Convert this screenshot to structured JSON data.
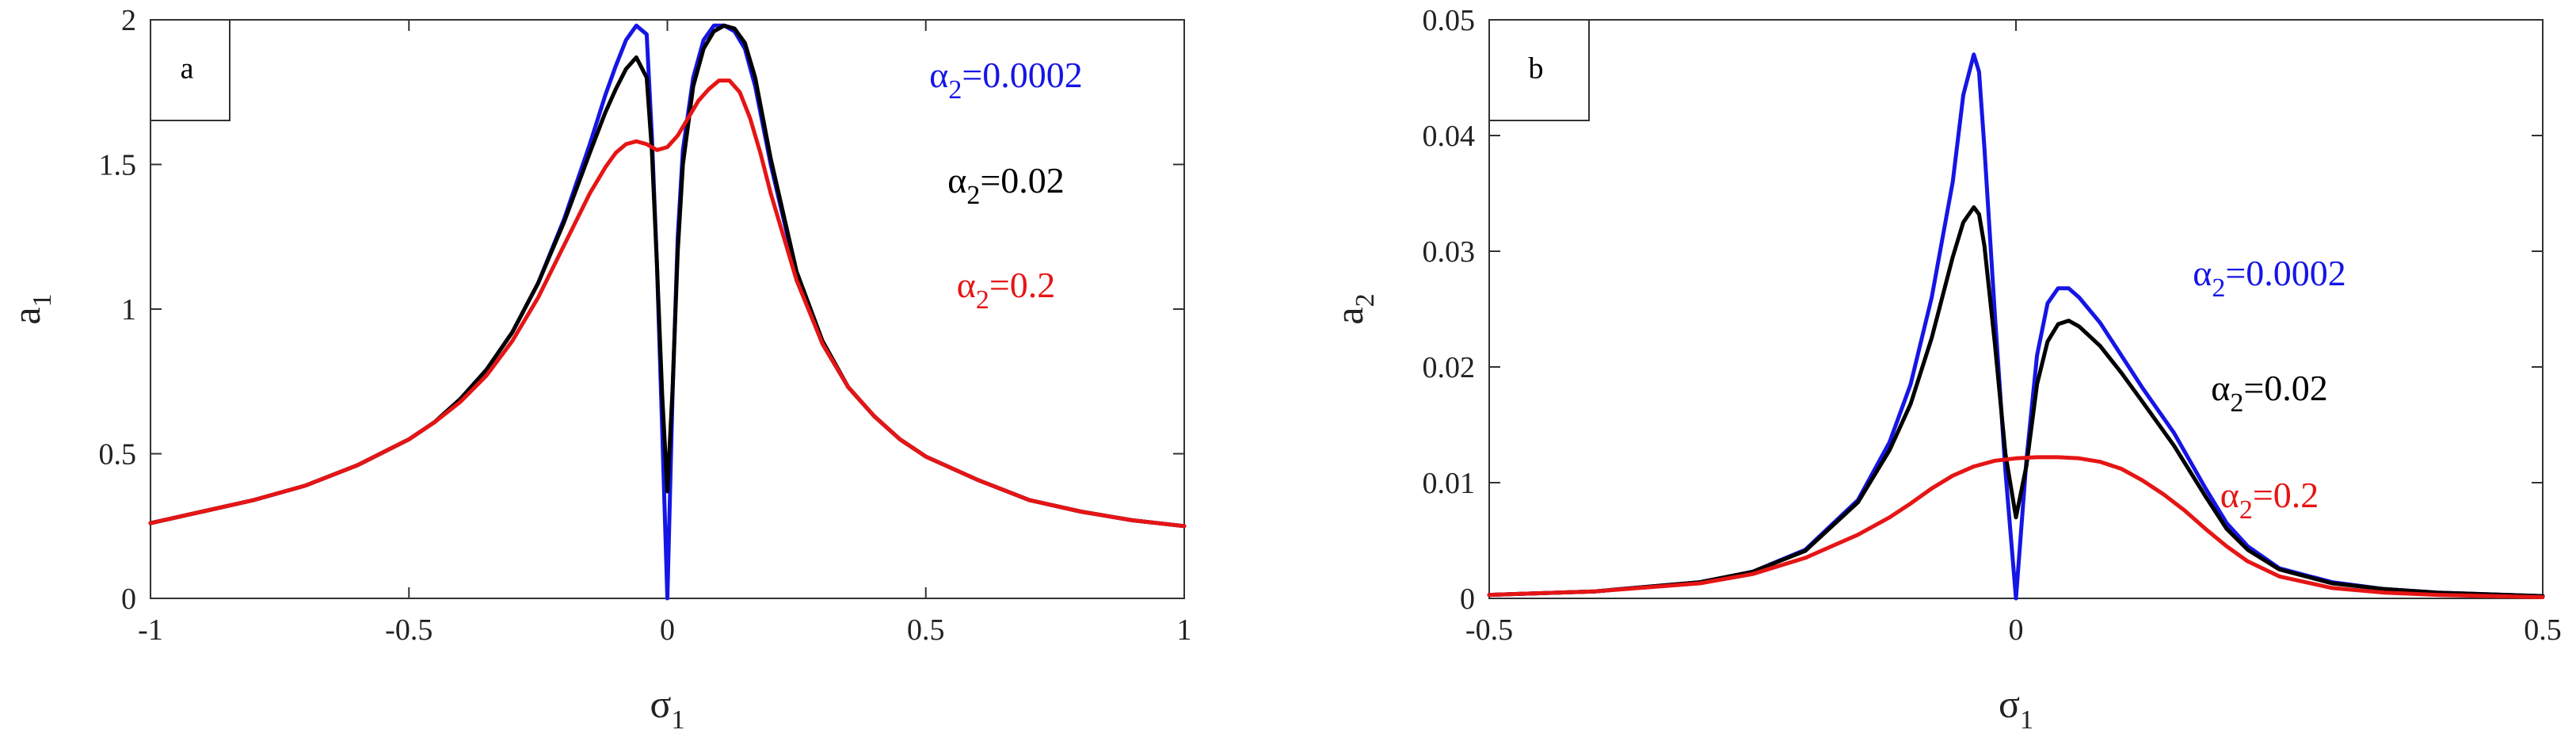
{
  "chart_data": [
    {
      "type": "line",
      "panel_label": "a",
      "xlabel": "σ1",
      "ylabel": "a1",
      "xlim": [
        -1,
        1
      ],
      "ylim": [
        0,
        2
      ],
      "xticks": [
        -1,
        -0.5,
        0,
        0.5,
        1
      ],
      "yticks": [
        0,
        0.5,
        1,
        1.5,
        2
      ],
      "grid": false,
      "legend_placement": "top-right",
      "series": [
        {
          "name": "α2=0.0002",
          "color": "#1515e6",
          "x": [
            -1,
            -0.9,
            -0.8,
            -0.7,
            -0.6,
            -0.5,
            -0.45,
            -0.4,
            -0.35,
            -0.3,
            -0.25,
            -0.2,
            -0.15,
            -0.12,
            -0.1,
            -0.08,
            -0.06,
            -0.04,
            -0.03,
            -0.02,
            -0.01,
            0,
            0.01,
            0.02,
            0.03,
            0.05,
            0.07,
            0.09,
            0.11,
            0.13,
            0.15,
            0.17,
            0.2,
            0.25,
            0.3,
            0.35,
            0.4,
            0.45,
            0.5,
            0.6,
            0.7,
            0.8,
            0.9,
            1
          ],
          "y": [
            0.26,
            0.3,
            0.34,
            0.39,
            0.46,
            0.55,
            0.61,
            0.69,
            0.79,
            0.92,
            1.09,
            1.31,
            1.57,
            1.74,
            1.84,
            1.93,
            1.98,
            1.95,
            1.6,
            1.15,
            0.58,
            0.0,
            0.7,
            1.25,
            1.55,
            1.8,
            1.93,
            1.98,
            1.98,
            1.96,
            1.9,
            1.77,
            1.5,
            1.12,
            0.88,
            0.73,
            0.63,
            0.55,
            0.49,
            0.41,
            0.34,
            0.3,
            0.27,
            0.25
          ]
        },
        {
          "name": "α2=0.02",
          "color": "#000000",
          "x": [
            -1,
            -0.9,
            -0.8,
            -0.7,
            -0.6,
            -0.5,
            -0.45,
            -0.4,
            -0.35,
            -0.3,
            -0.25,
            -0.2,
            -0.15,
            -0.12,
            -0.1,
            -0.08,
            -0.06,
            -0.04,
            -0.03,
            -0.02,
            -0.01,
            0,
            0.01,
            0.02,
            0.03,
            0.05,
            0.07,
            0.09,
            0.11,
            0.13,
            0.15,
            0.17,
            0.2,
            0.25,
            0.3,
            0.35,
            0.4,
            0.45,
            0.5,
            0.6,
            0.7,
            0.8,
            0.9,
            1
          ],
          "y": [
            0.26,
            0.3,
            0.34,
            0.39,
            0.46,
            0.55,
            0.61,
            0.69,
            0.79,
            0.92,
            1.09,
            1.3,
            1.54,
            1.68,
            1.76,
            1.83,
            1.87,
            1.8,
            1.55,
            1.15,
            0.7,
            0.37,
            0.72,
            1.2,
            1.5,
            1.77,
            1.9,
            1.96,
            1.98,
            1.97,
            1.92,
            1.8,
            1.52,
            1.13,
            0.89,
            0.73,
            0.63,
            0.55,
            0.49,
            0.41,
            0.34,
            0.3,
            0.27,
            0.25
          ]
        },
        {
          "name": "α2=0.2",
          "color": "#e61515",
          "x": [
            -1,
            -0.9,
            -0.8,
            -0.7,
            -0.6,
            -0.5,
            -0.45,
            -0.4,
            -0.35,
            -0.3,
            -0.25,
            -0.2,
            -0.15,
            -0.12,
            -0.1,
            -0.08,
            -0.06,
            -0.04,
            -0.02,
            0,
            0.02,
            0.04,
            0.06,
            0.08,
            0.1,
            0.12,
            0.14,
            0.16,
            0.18,
            0.2,
            0.25,
            0.3,
            0.35,
            0.4,
            0.45,
            0.5,
            0.6,
            0.7,
            0.8,
            0.9,
            1
          ],
          "y": [
            0.26,
            0.3,
            0.34,
            0.39,
            0.46,
            0.55,
            0.61,
            0.68,
            0.77,
            0.89,
            1.04,
            1.22,
            1.4,
            1.49,
            1.54,
            1.57,
            1.58,
            1.57,
            1.55,
            1.56,
            1.6,
            1.66,
            1.72,
            1.76,
            1.79,
            1.79,
            1.75,
            1.66,
            1.54,
            1.4,
            1.1,
            0.88,
            0.73,
            0.63,
            0.55,
            0.49,
            0.41,
            0.34,
            0.3,
            0.27,
            0.25
          ]
        }
      ]
    },
    {
      "type": "line",
      "panel_label": "b",
      "xlabel": "σ1",
      "ylabel": "a2",
      "xlim": [
        -0.5,
        0.5
      ],
      "ylim": [
        0,
        0.05
      ],
      "xticks": [
        -0.5,
        0,
        0.5
      ],
      "yticks": [
        0,
        0.01,
        0.02,
        0.03,
        0.04,
        0.05
      ],
      "grid": false,
      "legend_placement": "right",
      "series": [
        {
          "name": "α2=0.0002",
          "color": "#1515e6",
          "x": [
            -0.5,
            -0.4,
            -0.3,
            -0.25,
            -0.2,
            -0.15,
            -0.12,
            -0.1,
            -0.08,
            -0.06,
            -0.05,
            -0.04,
            -0.035,
            -0.03,
            -0.02,
            -0.01,
            0,
            0.01,
            0.02,
            0.03,
            0.04,
            0.05,
            0.06,
            0.08,
            0.1,
            0.12,
            0.15,
            0.18,
            0.2,
            0.22,
            0.25,
            0.3,
            0.35,
            0.4,
            0.5
          ],
          "y": [
            0.0003,
            0.0006,
            0.0014,
            0.0023,
            0.0042,
            0.0085,
            0.0135,
            0.0185,
            0.026,
            0.036,
            0.0435,
            0.047,
            0.0455,
            0.039,
            0.0245,
            0.011,
            0.0,
            0.012,
            0.021,
            0.0255,
            0.0268,
            0.0268,
            0.026,
            0.0238,
            0.021,
            0.0182,
            0.0143,
            0.0095,
            0.0065,
            0.0045,
            0.0026,
            0.0014,
            0.0008,
            0.0005,
            0.0002
          ]
        },
        {
          "name": "α2=0.02",
          "color": "#000000",
          "x": [
            -0.5,
            -0.4,
            -0.3,
            -0.25,
            -0.2,
            -0.15,
            -0.12,
            -0.1,
            -0.08,
            -0.06,
            -0.05,
            -0.04,
            -0.035,
            -0.03,
            -0.02,
            -0.01,
            0,
            0.01,
            0.02,
            0.03,
            0.04,
            0.05,
            0.06,
            0.08,
            0.1,
            0.12,
            0.15,
            0.18,
            0.2,
            0.22,
            0.25,
            0.3,
            0.35,
            0.4,
            0.5
          ],
          "y": [
            0.0003,
            0.0006,
            0.0014,
            0.0023,
            0.0041,
            0.0083,
            0.0128,
            0.0168,
            0.0225,
            0.0295,
            0.0325,
            0.0338,
            0.0332,
            0.0305,
            0.022,
            0.0125,
            0.007,
            0.0115,
            0.0185,
            0.0222,
            0.0237,
            0.024,
            0.0235,
            0.0218,
            0.0195,
            0.017,
            0.0132,
            0.0088,
            0.006,
            0.0042,
            0.0025,
            0.0013,
            0.0008,
            0.0005,
            0.0002
          ]
        },
        {
          "name": "α2=0.2",
          "color": "#e61515",
          "x": [
            -0.5,
            -0.4,
            -0.3,
            -0.25,
            -0.2,
            -0.15,
            -0.12,
            -0.1,
            -0.08,
            -0.06,
            -0.04,
            -0.02,
            0,
            0.02,
            0.04,
            0.06,
            0.08,
            0.1,
            0.12,
            0.14,
            0.16,
            0.18,
            0.2,
            0.22,
            0.25,
            0.3,
            0.35,
            0.4,
            0.5
          ],
          "y": [
            0.0003,
            0.0006,
            0.0013,
            0.0021,
            0.0035,
            0.0055,
            0.007,
            0.0082,
            0.0095,
            0.0106,
            0.0114,
            0.0119,
            0.0121,
            0.0122,
            0.0122,
            0.0121,
            0.0118,
            0.0112,
            0.0102,
            0.009,
            0.0076,
            0.006,
            0.0045,
            0.0032,
            0.0019,
            0.0009,
            0.0005,
            0.0003,
            0.0001
          ]
        }
      ]
    }
  ]
}
